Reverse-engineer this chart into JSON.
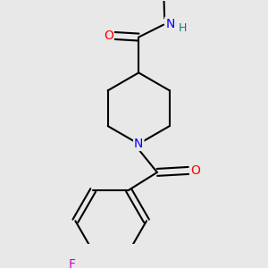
{
  "background_color": "#e8e8e8",
  "bond_color": "#000000",
  "bond_width": 1.5,
  "atom_colors": {
    "O": "#ff0000",
    "N_amide": "#0000ff",
    "N_pip": "#0000ff",
    "H": "#008080",
    "F": "#cc00cc",
    "C": "#000000"
  },
  "font_size_atom": 10,
  "fig_size": [
    3.0,
    3.0
  ],
  "dpi": 100
}
